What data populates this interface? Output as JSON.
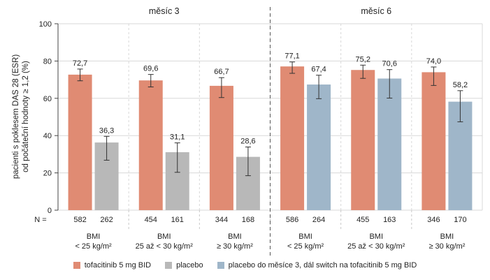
{
  "chart_data": {
    "type": "bar",
    "ylabel_line1": "pacienti s poklesem DAS 28 (ESR)",
    "ylabel_line2": "od počáteční hodnoty ≥ 1,2 (%)",
    "ylim": [
      0,
      100
    ],
    "yticks": [
      "0",
      "20",
      "40",
      "60",
      "80",
      "100"
    ],
    "grid": true,
    "n_label": "N =",
    "colors": {
      "tofacitinib": "#e08b73",
      "placebo": "#b8b8b8",
      "switch": "#9fb6c9"
    },
    "periods": [
      {
        "label": "měsíc 3",
        "groups": [
          {
            "label_line1": "BMI",
            "label_line2": "< 25 kg/m²",
            "bars": [
              {
                "series": "tofacitinib",
                "value": 72.7,
                "label": "72,7",
                "err_low": 69.4,
                "err_high": 75.7,
                "n": "582"
              },
              {
                "series": "placebo",
                "value": 36.3,
                "label": "36,3",
                "err_low": 26.8,
                "err_high": 39.6,
                "n": "262"
              }
            ]
          },
          {
            "label_line1": "BMI",
            "label_line2": "25 až < 30 kg/m²",
            "bars": [
              {
                "series": "tofacitinib",
                "value": 69.6,
                "label": "69,6",
                "err_low": 66.1,
                "err_high": 72.8,
                "n": "454"
              },
              {
                "series": "placebo",
                "value": 31.1,
                "label": "31,1",
                "err_low": 20.3,
                "err_high": 36.1,
                "n": "161"
              }
            ]
          },
          {
            "label_line1": "BMI",
            "label_line2": "≥ 30 kg/m²",
            "bars": [
              {
                "series": "tofacitinib",
                "value": 66.7,
                "label": "66,7",
                "err_low": 60.4,
                "err_high": 71.1,
                "n": "344"
              },
              {
                "series": "placebo",
                "value": 28.6,
                "label": "28,6",
                "err_low": 18.5,
                "err_high": 33.9,
                "n": "168"
              }
            ]
          }
        ]
      },
      {
        "label": "měsíc 6",
        "groups": [
          {
            "label_line1": "BMI",
            "label_line2": "< 25 kg/m²",
            "bars": [
              {
                "series": "tofacitinib",
                "value": 77.1,
                "label": "77,1",
                "err_low": 73.4,
                "err_high": 79.5,
                "n": "586"
              },
              {
                "series": "switch",
                "value": 67.4,
                "label": "67,4",
                "err_low": 59.8,
                "err_high": 72.4,
                "n": "264"
              }
            ]
          },
          {
            "label_line1": "BMI",
            "label_line2": "25 až < 30 kg/m²",
            "bars": [
              {
                "series": "tofacitinib",
                "value": 75.2,
                "label": "75,2",
                "err_low": 70.7,
                "err_high": 77.8,
                "n": "455"
              },
              {
                "series": "switch",
                "value": 70.6,
                "label": "70,6",
                "err_low": 60.1,
                "err_high": 75.4,
                "n": "163"
              }
            ]
          },
          {
            "label_line1": "BMI",
            "label_line2": "≥ 30 kg/m²",
            "bars": [
              {
                "series": "tofacitinib",
                "value": 74.0,
                "label": "74,0",
                "err_low": 66.9,
                "err_high": 76.8,
                "n": "346"
              },
              {
                "series": "switch",
                "value": 58.2,
                "label": "58,2",
                "err_low": 47.4,
                "err_high": 64.1,
                "n": "170"
              }
            ]
          }
        ]
      }
    ],
    "legend": [
      {
        "series": "tofacitinib",
        "label": "tofacitinib 5 mg BID"
      },
      {
        "series": "placebo",
        "label": "placebo"
      },
      {
        "series": "switch",
        "label": "placebo do měsíce 3, dál switch na tofacitinib 5 mg BID"
      }
    ]
  }
}
